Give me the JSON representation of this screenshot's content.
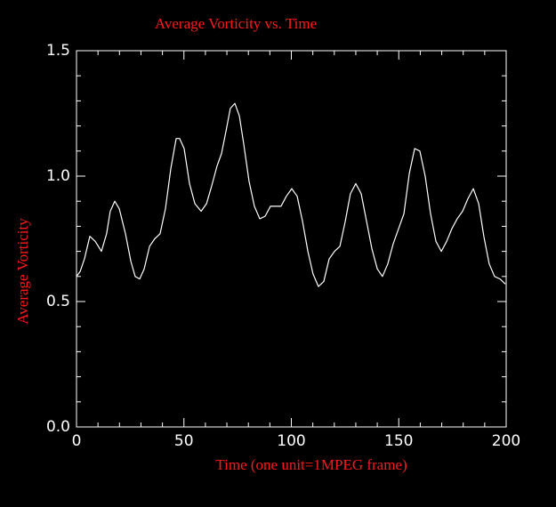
{
  "chart_data": {
    "type": "line",
    "title": "Average Vorticity vs. Time",
    "xlabel": "Time (one unit=1MPEG frame)",
    "ylabel": "Average Vorticity",
    "xlim": [
      0,
      200
    ],
    "ylim": [
      0,
      1.5
    ],
    "xticks": [
      0,
      50,
      100,
      150,
      200
    ],
    "yticks": [
      {
        "value": 0,
        "label": "0.0"
      },
      {
        "value": 0.5,
        "label": "0.5"
      },
      {
        "value": 1,
        "label": "1.0"
      },
      {
        "value": 1.5,
        "label": "1.5"
      }
    ],
    "x": [
      0,
      1.7,
      3.7,
      6.2,
      8.7,
      11.6,
      14,
      15.7,
      17.8,
      19.9,
      22.8,
      25.3,
      27.3,
      29.4,
      31.5,
      34,
      36.4,
      38.9,
      41.4,
      43.9,
      46.4,
      48,
      50.1,
      52.6,
      55.1,
      58,
      60.5,
      62.9,
      65.4,
      67.5,
      69.6,
      71.6,
      73.7,
      75.8,
      77.8,
      80.3,
      82.8,
      85.3,
      87.8,
      90.3,
      92.7,
      95.2,
      97.7,
      100.2,
      102.7,
      105.2,
      107.7,
      110.1,
      112.6,
      115.1,
      117.6,
      120.1,
      122.6,
      125.1,
      127.5,
      130,
      132.5,
      135,
      137.5,
      140,
      142.4,
      144.9,
      147.4,
      149.9,
      152.4,
      154.9,
      157.4,
      159.8,
      162.3,
      164.8,
      167.3,
      169.8,
      172.3,
      174.7,
      177.2,
      179.7,
      182.2,
      184.7,
      187.2,
      189.6,
      192.1,
      194.6,
      197.1,
      199.6
    ],
    "series": [
      {
        "name": "Average Vorticity",
        "color": "#ffffff",
        "values": [
          0.6,
          0.62,
          0.67,
          0.76,
          0.74,
          0.7,
          0.77,
          0.86,
          0.9,
          0.87,
          0.77,
          0.66,
          0.6,
          0.59,
          0.63,
          0.72,
          0.75,
          0.77,
          0.87,
          1.03,
          1.15,
          1.15,
          1.11,
          0.97,
          0.89,
          0.86,
          0.89,
          0.96,
          1.04,
          1.09,
          1.18,
          1.27,
          1.29,
          1.24,
          1.13,
          0.98,
          0.88,
          0.83,
          0.84,
          0.88,
          0.88,
          0.88,
          0.92,
          0.95,
          0.92,
          0.82,
          0.7,
          0.61,
          0.56,
          0.58,
          0.67,
          0.7,
          0.72,
          0.82,
          0.93,
          0.97,
          0.93,
          0.82,
          0.71,
          0.63,
          0.6,
          0.65,
          0.73,
          0.79,
          0.85,
          1.01,
          1.11,
          1.1,
          1.0,
          0.85,
          0.74,
          0.7,
          0.74,
          0.79,
          0.83,
          0.86,
          0.91,
          0.95,
          0.89,
          0.76,
          0.65,
          0.6,
          0.59,
          0.57
        ]
      }
    ]
  }
}
